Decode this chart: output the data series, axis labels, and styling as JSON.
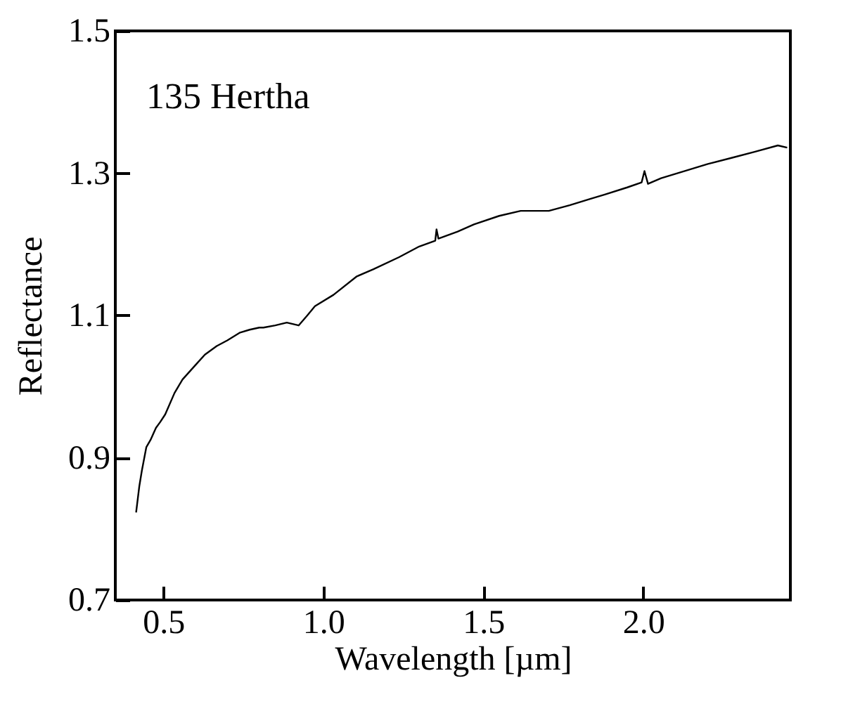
{
  "chart_data": {
    "type": "line",
    "annotations": [
      "135 Hertha"
    ],
    "xlabel": "Wavelength [µm]",
    "ylabel": "Reflectance",
    "xlim": [
      0.35,
      2.46
    ],
    "ylim": [
      0.7,
      1.5
    ],
    "xticks": [
      0.5,
      {
        "value": 1,
        "label": "1.0"
      },
      1.5,
      {
        "value": 2,
        "label": "2.0"
      }
    ],
    "yticks": [
      0.7,
      0.9,
      1.1,
      1.3,
      1.5
    ],
    "x": [
      0.415,
      0.425,
      0.433,
      0.447,
      0.46,
      0.477,
      0.49,
      0.506,
      0.535,
      0.56,
      0.594,
      0.63,
      0.667,
      0.7,
      0.74,
      0.77,
      0.8,
      0.813,
      0.85,
      0.886,
      0.923,
      0.95,
      0.974,
      1.032,
      1.105,
      1.157,
      1.237,
      1.3,
      1.35,
      1.354,
      1.36,
      1.42,
      1.471,
      1.55,
      1.617,
      1.705,
      1.77,
      1.836,
      1.88,
      1.95,
      1.995,
      2.004,
      2.015,
      2.056,
      2.13,
      2.202,
      2.28,
      2.348,
      2.421,
      2.45
    ],
    "series": [
      {
        "color": "#000000",
        "values": [
          0.823,
          0.86,
          0.882,
          0.915,
          0.925,
          0.942,
          0.95,
          0.961,
          0.991,
          1.01,
          1.027,
          1.045,
          1.057,
          1.065,
          1.076,
          1.08,
          1.083,
          1.083,
          1.086,
          1.09,
          1.086,
          1.1,
          1.113,
          1.129,
          1.155,
          1.165,
          1.182,
          1.197,
          1.205,
          1.221,
          1.208,
          1.218,
          1.228,
          1.24,
          1.247,
          1.247,
          1.255,
          1.264,
          1.27,
          1.28,
          1.287,
          1.303,
          1.285,
          1.293,
          1.303,
          1.313,
          1.322,
          1.33,
          1.339,
          1.336
        ]
      }
    ],
    "grid": false,
    "legend": false,
    "marker": "none",
    "line_style": "solid"
  }
}
